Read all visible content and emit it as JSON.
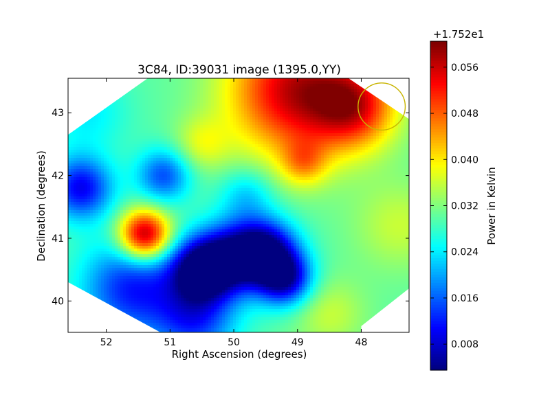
{
  "chart_data": {
    "type": "heatmap",
    "title": "3C84, ID:39031 image (1395.0,YY)",
    "xlabel": "Right Ascension (degrees)",
    "ylabel": "Declination (degrees)",
    "xlim": [
      52.6,
      47.25
    ],
    "ylim": [
      39.5,
      43.55
    ],
    "xticks": [
      {
        "value": 52,
        "label": "52"
      },
      {
        "value": 51,
        "label": "51"
      },
      {
        "value": 50,
        "label": "50"
      },
      {
        "value": 49,
        "label": "49"
      },
      {
        "value": 48,
        "label": "48"
      }
    ],
    "yticks": [
      {
        "value": 40,
        "label": "40"
      },
      {
        "value": 41,
        "label": "41"
      },
      {
        "value": 42,
        "label": "42"
      },
      {
        "value": 43,
        "label": "43"
      }
    ],
    "colorbar": {
      "label": "Power in Kelvin",
      "offset_label": "+1.752e1",
      "range": [
        0.0035,
        0.0605
      ],
      "ticks": [
        {
          "value": 0.008,
          "label": "0.008"
        },
        {
          "value": 0.016,
          "label": "0.016"
        },
        {
          "value": 0.024,
          "label": "0.024"
        },
        {
          "value": 0.032,
          "label": "0.032"
        },
        {
          "value": 0.04,
          "label": "0.040"
        },
        {
          "value": 0.048,
          "label": "0.048"
        },
        {
          "value": 0.056,
          "label": "0.056"
        }
      ],
      "colormap": "jet"
    },
    "background_value": 0.03,
    "features": [
      {
        "ra": 51.4,
        "dec": 41.05,
        "value": 0.0605,
        "sigma": 0.28,
        "desc": "hot spot"
      },
      {
        "ra": 49.0,
        "dec": 43.35,
        "value": 0.057,
        "sigma": 0.75,
        "desc": "northern bright region"
      },
      {
        "ra": 48.1,
        "dec": 43.1,
        "value": 0.048,
        "sigma": 0.45
      },
      {
        "ra": 50.5,
        "dec": 40.5,
        "value": 0.004,
        "sigma": 0.35
      },
      {
        "ra": 49.5,
        "dec": 40.8,
        "value": 0.006,
        "sigma": 0.35
      },
      {
        "ra": 49.2,
        "dec": 40.35,
        "value": 0.007,
        "sigma": 0.3
      },
      {
        "ra": 50.0,
        "dec": 40.7,
        "value": 0.009,
        "sigma": 0.4
      },
      {
        "ra": 52.4,
        "dec": 41.8,
        "value": 0.01,
        "sigma": 0.35
      },
      {
        "ra": 51.1,
        "dec": 42.0,
        "value": 0.015,
        "sigma": 0.3
      },
      {
        "ra": 51.6,
        "dec": 40.2,
        "value": 0.012,
        "sigma": 0.55
      },
      {
        "ra": 50.6,
        "dec": 39.7,
        "value": 0.014,
        "sigma": 0.45
      },
      {
        "ra": 50.5,
        "dec": 42.5,
        "value": 0.037,
        "sigma": 0.3
      },
      {
        "ra": 48.9,
        "dec": 42.2,
        "value": 0.04,
        "sigma": 0.25
      },
      {
        "ra": 47.4,
        "dec": 41.2,
        "value": 0.036,
        "sigma": 0.5
      },
      {
        "ra": 52.3,
        "dec": 43.0,
        "value": 0.024,
        "sigma": 0.45
      },
      {
        "ra": 49.8,
        "dec": 41.7,
        "value": 0.022,
        "sigma": 0.3
      },
      {
        "ra": 48.5,
        "dec": 39.8,
        "value": 0.036,
        "sigma": 0.4
      }
    ],
    "mask_polygon": [
      {
        "ra": 51.35,
        "dec": 43.55
      },
      {
        "ra": 48.2,
        "dec": 43.55
      },
      {
        "ra": 47.25,
        "dec": 42.9
      },
      {
        "ra": 47.25,
        "dec": 40.2
      },
      {
        "ra": 48.0,
        "dec": 39.6
      },
      {
        "ra": 48.0,
        "dec": 39.5
      },
      {
        "ra": 51.15,
        "dec": 39.5
      },
      {
        "ra": 52.6,
        "dec": 40.3
      },
      {
        "ra": 52.6,
        "dec": 42.65
      }
    ],
    "beam_circle": {
      "ra": 47.68,
      "dec": 43.1,
      "radius_deg": 0.37,
      "color": "#c8b400"
    }
  }
}
